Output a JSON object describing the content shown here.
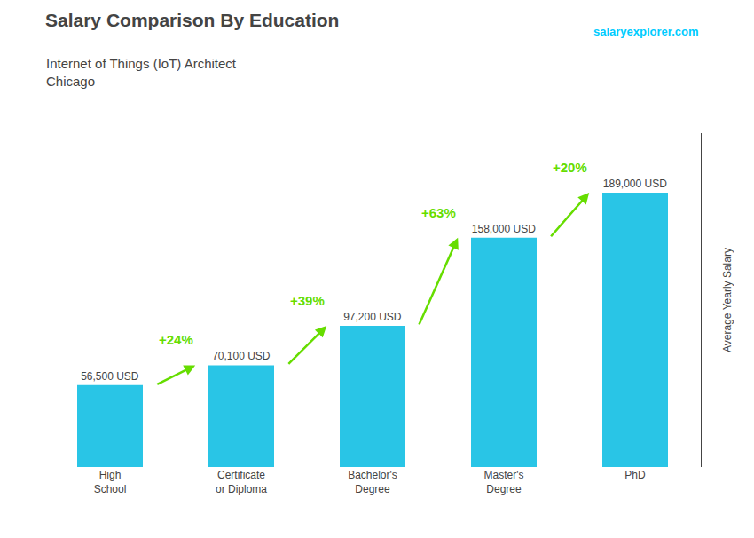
{
  "chart_data": {
    "type": "bar",
    "title": "Salary Comparison By Education",
    "subtitle": "Internet of Things (IoT) Architect\nChicago",
    "ylabel": "Average Yearly Salary",
    "categories": [
      "High\nSchool",
      "Certificate\nor Diploma",
      "Bachelor's\nDegree",
      "Master's\nDegree",
      "PhD"
    ],
    "values": [
      56500,
      70100,
      97200,
      158000,
      189000
    ],
    "value_labels": [
      "56,500 USD",
      "70,100 USD",
      "97,200 USD",
      "158,000 USD",
      "189,000 USD"
    ],
    "data_labels": true,
    "color": "#29c5e6",
    "ylim": [
      0,
      230000
    ],
    "grid": false,
    "tick_labels": "x",
    "annotations": [
      {
        "text": "+24%",
        "from": "High\nSchool",
        "to": "Certificate\nor Diploma",
        "color": "#66dd00"
      },
      {
        "text": "+39%",
        "from": "Certificate\nor Diploma",
        "to": "Bachelor's\nDegree",
        "color": "#66dd00"
      },
      {
        "text": "+63%",
        "from": "Bachelor's\nDegree",
        "to": "Master's\nDegree",
        "color": "#66dd00"
      },
      {
        "text": "+20%",
        "from": "Master's\nDegree",
        "to": "PhD",
        "color": "#66dd00"
      },
      {
        "text": "salaryexplorer.com",
        "color": "#00ccff"
      }
    ]
  }
}
